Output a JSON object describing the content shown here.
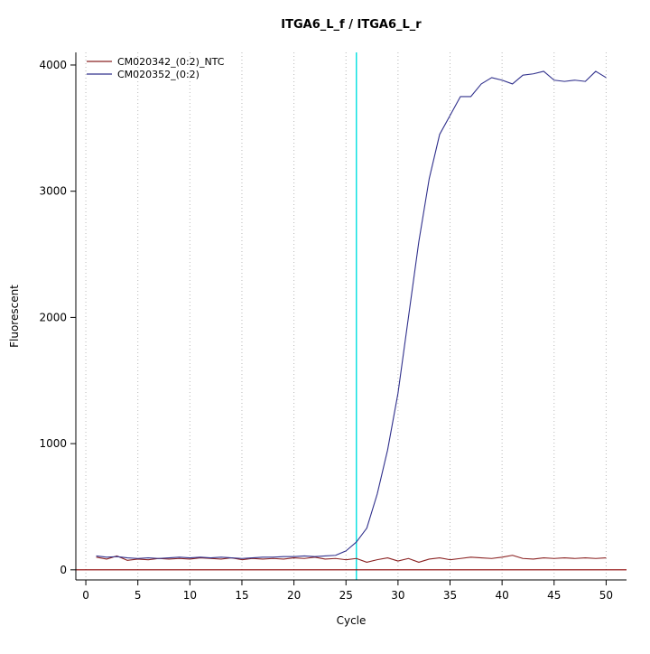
{
  "page": {
    "background": "#ffffff"
  },
  "chart_data": {
    "type": "line",
    "title": "ITGA6_L_f / ITGA6_L_r",
    "xlabel": "Cycle",
    "ylabel": "Fluorescent",
    "xlim": [
      -0.96,
      51.96
    ],
    "ylim": [
      -80,
      4100
    ],
    "xticks": [
      0,
      5,
      10,
      15,
      20,
      25,
      30,
      35,
      40,
      45,
      50
    ],
    "yticks": [
      0,
      1000,
      2000,
      3000,
      4000
    ],
    "grid": {
      "vertical_dotted_at_xticks": true,
      "color": "#b8b8b8"
    },
    "legend_position": "top-left",
    "annotations": {
      "vertical_line": {
        "x": 26,
        "color": "#00e0e0"
      },
      "horizontal_line": {
        "y": 0,
        "color": "#8b0000"
      }
    },
    "x": [
      1,
      2,
      3,
      4,
      5,
      6,
      7,
      8,
      9,
      10,
      11,
      12,
      13,
      14,
      15,
      16,
      17,
      18,
      19,
      20,
      21,
      22,
      23,
      24,
      25,
      26,
      27,
      28,
      29,
      30,
      31,
      32,
      33,
      34,
      35,
      36,
      37,
      38,
      39,
      40,
      41,
      42,
      43,
      44,
      45,
      46,
      47,
      48,
      49,
      50
    ],
    "series": [
      {
        "name": "CM020342_(0:2)_NTC",
        "color": "#8b2323",
        "values": [
          100,
          85,
          110,
          75,
          85,
          80,
          90,
          85,
          90,
          85,
          95,
          90,
          85,
          95,
          80,
          90,
          85,
          90,
          85,
          95,
          90,
          100,
          85,
          90,
          80,
          90,
          60,
          80,
          95,
          70,
          90,
          60,
          85,
          95,
          80,
          90,
          100,
          95,
          90,
          100,
          115,
          90,
          85,
          95,
          90,
          95,
          90,
          95,
          90,
          95
        ]
      },
      {
        "name": "CM020352_(0:2)",
        "color": "#30308c",
        "values": [
          110,
          100,
          105,
          95,
          90,
          95,
          90,
          95,
          100,
          95,
          100,
          95,
          100,
          95,
          90,
          95,
          100,
          100,
          105,
          105,
          110,
          105,
          110,
          115,
          150,
          220,
          330,
          600,
          950,
          1400,
          2000,
          2600,
          3100,
          3450,
          3600,
          3750,
          3750,
          3850,
          3900,
          3880,
          3850,
          3920,
          3930,
          3950,
          3880,
          3870,
          3880,
          3870,
          3950,
          3900
        ]
      }
    ]
  }
}
